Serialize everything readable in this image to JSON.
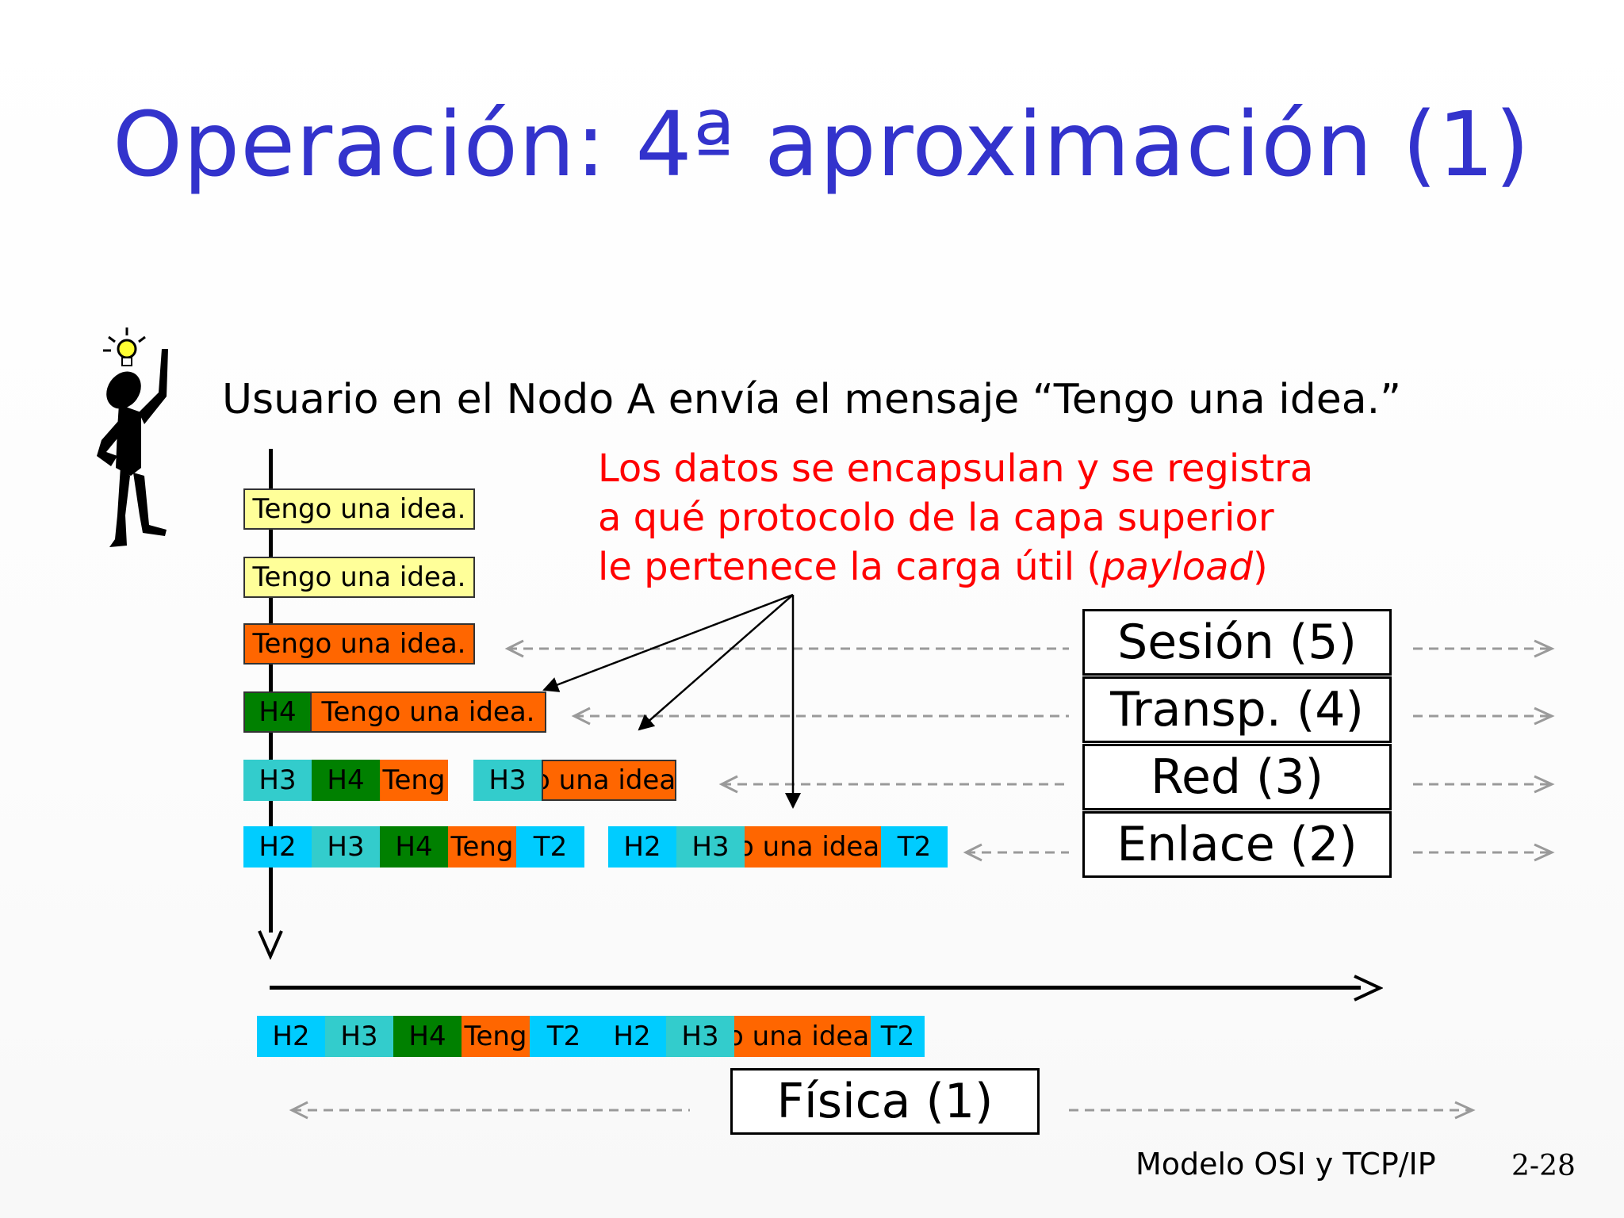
{
  "title": "Operación: 4ª aproximación (1)",
  "intro": "Usuario en el Nodo A envía el mensaje “Tengo una idea.”",
  "note": {
    "line1": "Los datos se encapsulan y se registra",
    "line2": "a qué protocolo de la capa superior",
    "line3_pre": "le pertenece la carga útil (",
    "line3_em": "payload",
    "line3_post": ")"
  },
  "packets": {
    "row1": [
      "Tengo una idea."
    ],
    "row2": [
      "Tengo una idea."
    ],
    "row3": [
      "Tengo una idea."
    ],
    "row4": [
      "H4",
      "Tengo una idea."
    ],
    "row5a": [
      "H3",
      "H4",
      "Teng"
    ],
    "row5b": [
      "H3",
      "o una idea."
    ],
    "row6a": [
      "H2",
      "H3",
      "H4",
      "Teng",
      "T2"
    ],
    "row6b": [
      "H2",
      "H3",
      "o una idea.",
      "T2"
    ],
    "bottom": [
      "H2",
      "H3",
      "H4",
      "Teng",
      "T2",
      "H2",
      "H3",
      "o una idea.",
      "T2"
    ]
  },
  "layers": {
    "session": "Sesión (5)",
    "transport": "Transp. (4)",
    "network": "Red (3)",
    "link": "Enlace (2)",
    "physical": "Física (1)"
  },
  "footer": {
    "label": "Modelo OSI y TCP/IP",
    "page": "2-28"
  },
  "colors": {
    "title": "#3333cc",
    "note": "#ff0000",
    "app_data": "#ffff99",
    "payload": "#ff6600",
    "h4": "#008000",
    "h3": "#33cccc",
    "h2": "#00ccff"
  },
  "icons": [
    "idea-person-icon",
    "lightbulb-icon"
  ]
}
